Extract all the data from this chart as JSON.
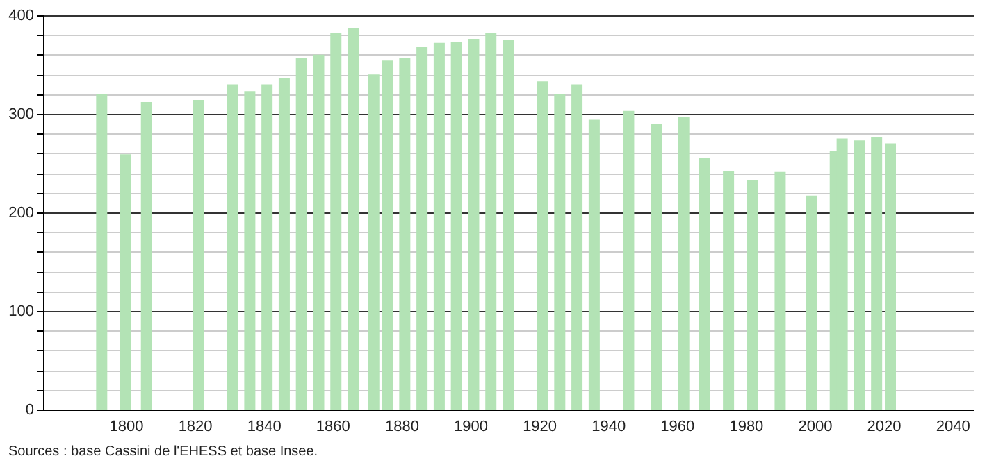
{
  "chart_data": {
    "type": "bar",
    "color": "#b3e3b5",
    "x": [
      1793,
      1800,
      1806,
      1821,
      1831,
      1836,
      1841,
      1846,
      1851,
      1856,
      1861,
      1866,
      1872,
      1876,
      1881,
      1886,
      1891,
      1896,
      1901,
      1906,
      1911,
      1921,
      1926,
      1931,
      1936,
      1946,
      1954,
      1962,
      1968,
      1975,
      1982,
      1990,
      1999,
      2006,
      2008,
      2013,
      2018,
      2022
    ],
    "values": [
      320,
      259,
      312,
      314,
      330,
      323,
      330,
      336,
      357,
      360,
      382,
      387,
      340,
      354,
      357,
      368,
      372,
      373,
      376,
      382,
      375,
      333,
      320,
      330,
      294,
      303,
      290,
      297,
      255,
      242,
      233,
      241,
      217,
      262,
      275,
      273,
      276,
      270
    ],
    "xlim": [
      1778,
      2044
    ],
    "xticks": [
      1800,
      1820,
      1840,
      1860,
      1880,
      1900,
      1920,
      1940,
      1960,
      1980,
      2000,
      2020,
      2040
    ],
    "ylim": [
      0,
      400
    ],
    "yticks": [
      0,
      {
        "value": 20,
        "label": null
      },
      {
        "value": 40,
        "label": null
      },
      {
        "value": 60,
        "label": null
      },
      {
        "value": 80,
        "label": null
      },
      100,
      {
        "value": 120,
        "label": null
      },
      {
        "value": 140,
        "label": null
      },
      {
        "value": 160,
        "label": null
      },
      {
        "value": 180,
        "label": null
      },
      200,
      {
        "value": 220,
        "label": null
      },
      {
        "value": 240,
        "label": null
      },
      {
        "value": 260,
        "label": null
      },
      {
        "value": 280,
        "label": null
      },
      300,
      {
        "value": 320,
        "label": null
      },
      {
        "value": 340,
        "label": null
      },
      {
        "value": 360,
        "label": null
      },
      {
        "value": 380,
        "label": null
      },
      400
    ],
    "grid": "y",
    "annotations": [
      "Sources : base Cassini de l'EHESS et base Insee."
    ]
  }
}
